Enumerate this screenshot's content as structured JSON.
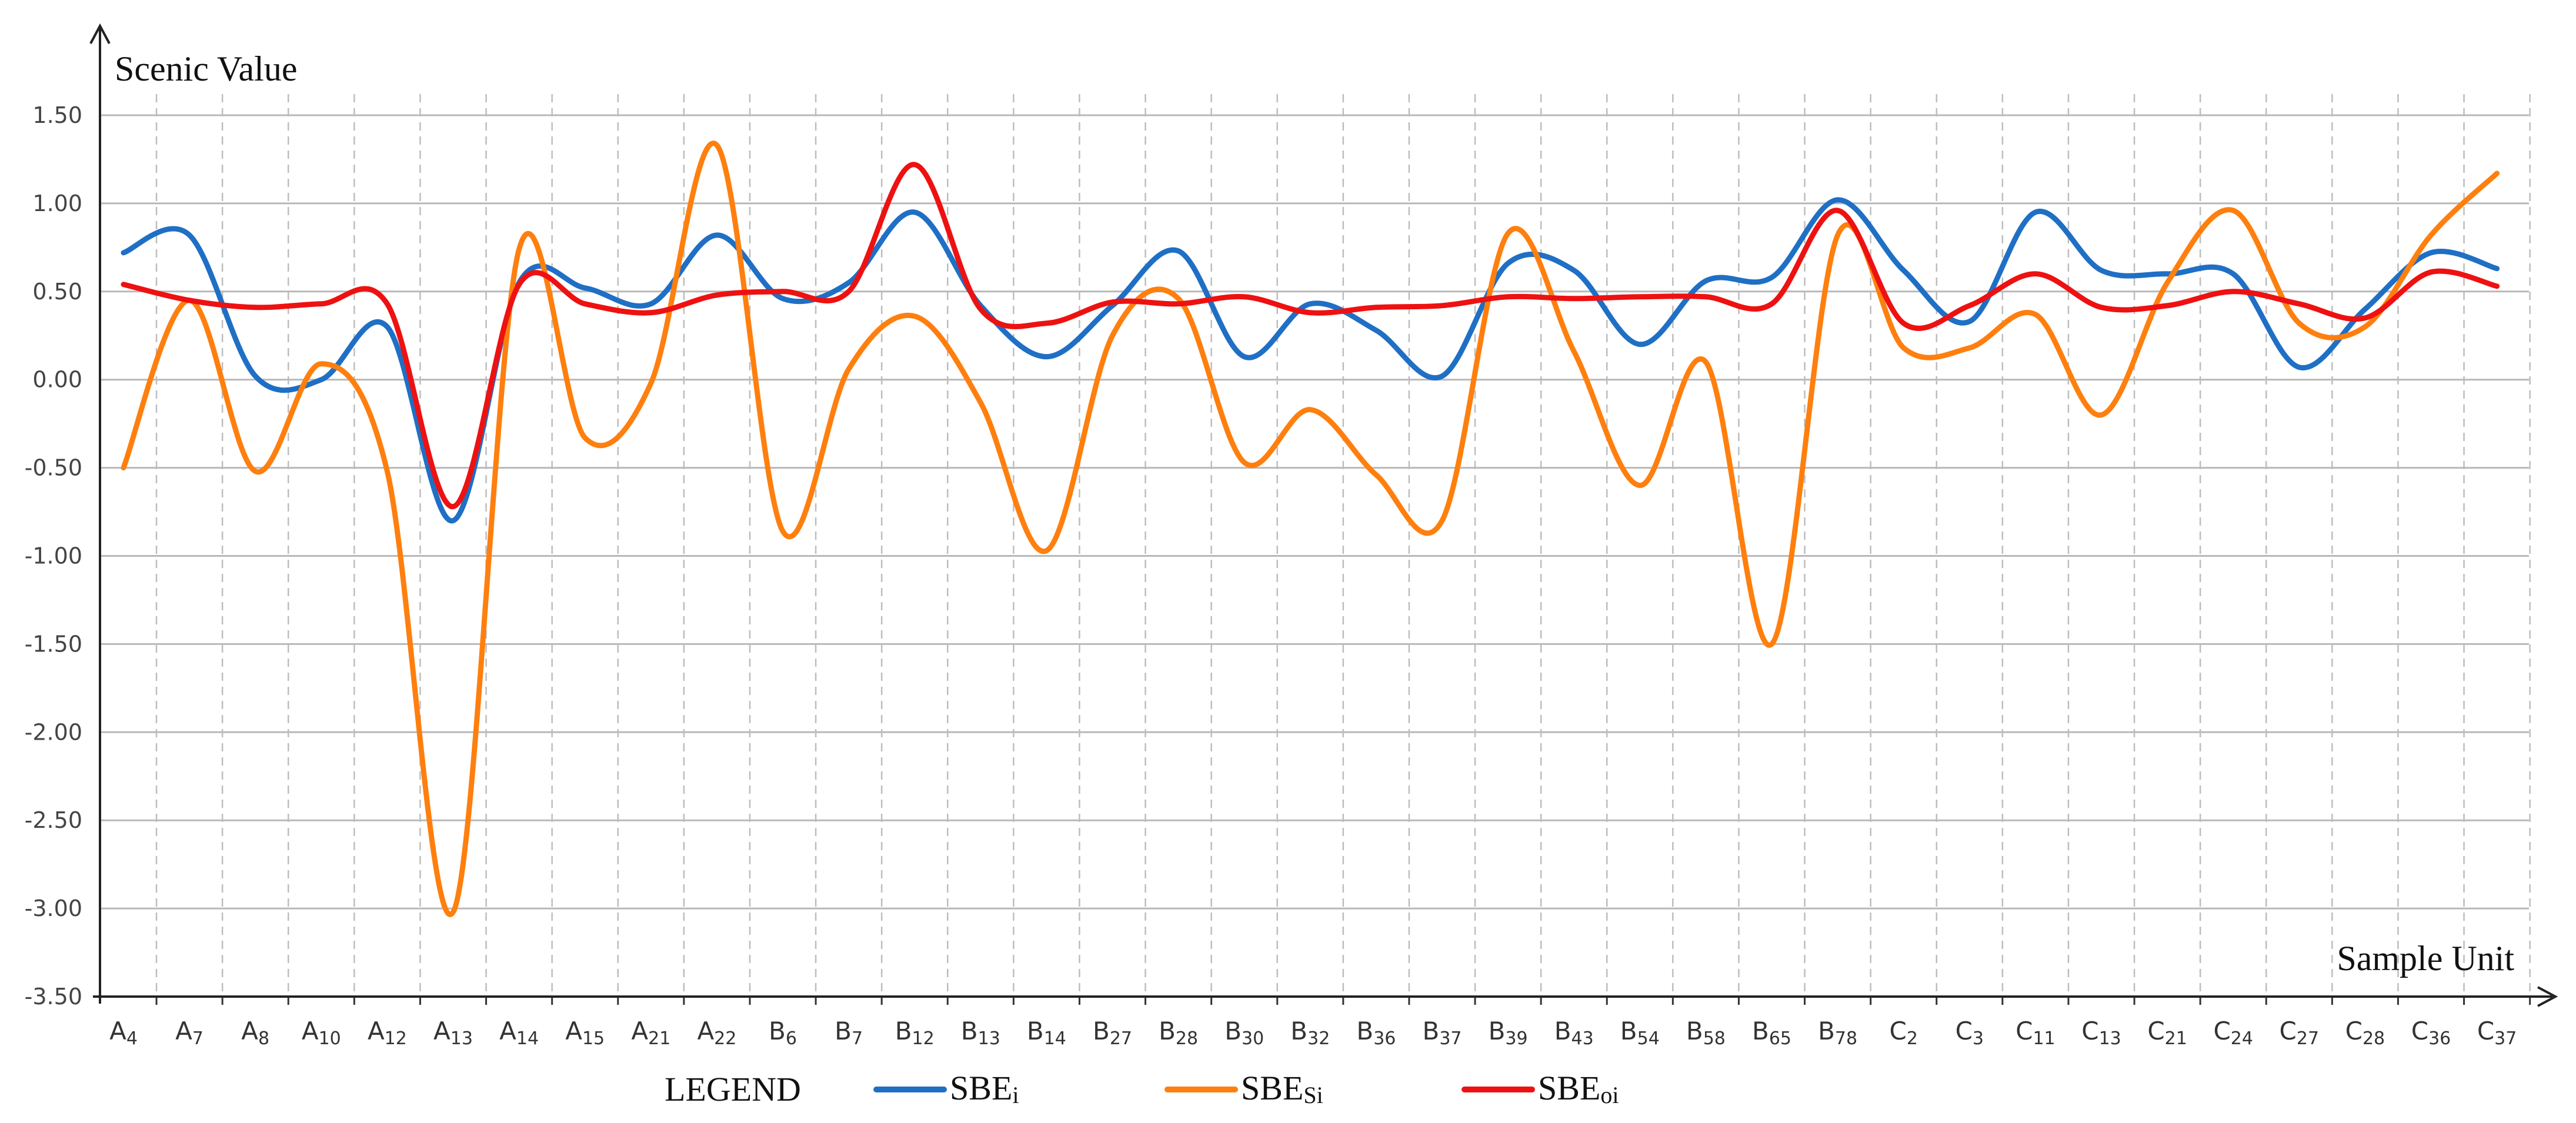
{
  "chart_data": {
    "type": "line",
    "ylabel": "Scenic Value",
    "xlabel": "Sample Unit",
    "ylim": [
      -3.5,
      1.85
    ],
    "yticks": [
      1.5,
      1.0,
      0.5,
      0.0,
      -0.5,
      -1.0,
      -1.5,
      -2.0,
      -2.5,
      -3.0,
      -3.5
    ],
    "ytick_labels": [
      "1.50",
      "1.00",
      "0.50",
      "0.00",
      "-0.50",
      "-1.00",
      "-1.50",
      "-2.00",
      "-2.50",
      "-3.00",
      "-3.50"
    ],
    "grid": true,
    "legend_title": "LEGEND",
    "legend_position": "bottom",
    "categories": [
      {
        "main": "A",
        "sub": "4"
      },
      {
        "main": "A",
        "sub": "7"
      },
      {
        "main": "A",
        "sub": "8"
      },
      {
        "main": "A",
        "sub": "10"
      },
      {
        "main": "A",
        "sub": "12"
      },
      {
        "main": "A",
        "sub": "13"
      },
      {
        "main": "A",
        "sub": "14"
      },
      {
        "main": "A",
        "sub": "15"
      },
      {
        "main": "A",
        "sub": "21"
      },
      {
        "main": "A",
        "sub": "22"
      },
      {
        "main": "B",
        "sub": "6"
      },
      {
        "main": "B",
        "sub": "7"
      },
      {
        "main": "B",
        "sub": "12"
      },
      {
        "main": "B",
        "sub": "13"
      },
      {
        "main": "B",
        "sub": "14"
      },
      {
        "main": "B",
        "sub": "27"
      },
      {
        "main": "B",
        "sub": "28"
      },
      {
        "main": "B",
        "sub": "30"
      },
      {
        "main": "B",
        "sub": "32"
      },
      {
        "main": "B",
        "sub": "36"
      },
      {
        "main": "B",
        "sub": "37"
      },
      {
        "main": "B",
        "sub": "39"
      },
      {
        "main": "B",
        "sub": "43"
      },
      {
        "main": "B",
        "sub": "54"
      },
      {
        "main": "B",
        "sub": "58"
      },
      {
        "main": "B",
        "sub": "65"
      },
      {
        "main": "B",
        "sub": "78"
      },
      {
        "main": "C",
        "sub": "2"
      },
      {
        "main": "C",
        "sub": "3"
      },
      {
        "main": "C",
        "sub": "11"
      },
      {
        "main": "C",
        "sub": "13"
      },
      {
        "main": "C",
        "sub": "21"
      },
      {
        "main": "C",
        "sub": "24"
      },
      {
        "main": "C",
        "sub": "27"
      },
      {
        "main": "C",
        "sub": "28"
      },
      {
        "main": "C",
        "sub": "36"
      },
      {
        "main": "C",
        "sub": "37"
      }
    ],
    "series": [
      {
        "name": "SBE",
        "name_sub": "i",
        "color": "#1f6fc5",
        "values": [
          0.72,
          0.82,
          0.02,
          0.0,
          0.3,
          -0.8,
          0.55,
          0.52,
          0.43,
          0.82,
          0.46,
          0.55,
          0.95,
          0.42,
          0.13,
          0.42,
          0.73,
          0.13,
          0.43,
          0.28,
          0.02,
          0.66,
          0.62,
          0.2,
          0.56,
          0.58,
          1.02,
          0.62,
          0.33,
          0.95,
          0.62,
          0.6,
          0.6,
          0.07,
          0.4,
          0.72,
          0.63
        ]
      },
      {
        "name": "SBE",
        "name_sub": "Si",
        "color": "#ff7f0e",
        "values": [
          -0.5,
          0.45,
          -0.52,
          0.09,
          -0.52,
          -3.02,
          0.74,
          -0.33,
          -0.02,
          1.33,
          -0.86,
          0.06,
          0.36,
          -0.13,
          -0.97,
          0.25,
          0.46,
          -0.47,
          -0.17,
          -0.54,
          -0.8,
          0.83,
          0.16,
          -0.6,
          0.1,
          -1.5,
          0.82,
          0.18,
          0.18,
          0.37,
          -0.2,
          0.55,
          0.96,
          0.32,
          0.3,
          0.82,
          1.17
        ]
      },
      {
        "name": "SBE",
        "name_sub": "oi",
        "color": "#ee1111",
        "values": [
          0.54,
          0.45,
          0.41,
          0.43,
          0.43,
          -0.72,
          0.54,
          0.43,
          0.38,
          0.48,
          0.5,
          0.5,
          1.22,
          0.4,
          0.32,
          0.44,
          0.43,
          0.47,
          0.38,
          0.41,
          0.42,
          0.47,
          0.46,
          0.47,
          0.47,
          0.43,
          0.96,
          0.32,
          0.42,
          0.6,
          0.41,
          0.42,
          0.5,
          0.43,
          0.35,
          0.61,
          0.53
        ]
      }
    ]
  }
}
